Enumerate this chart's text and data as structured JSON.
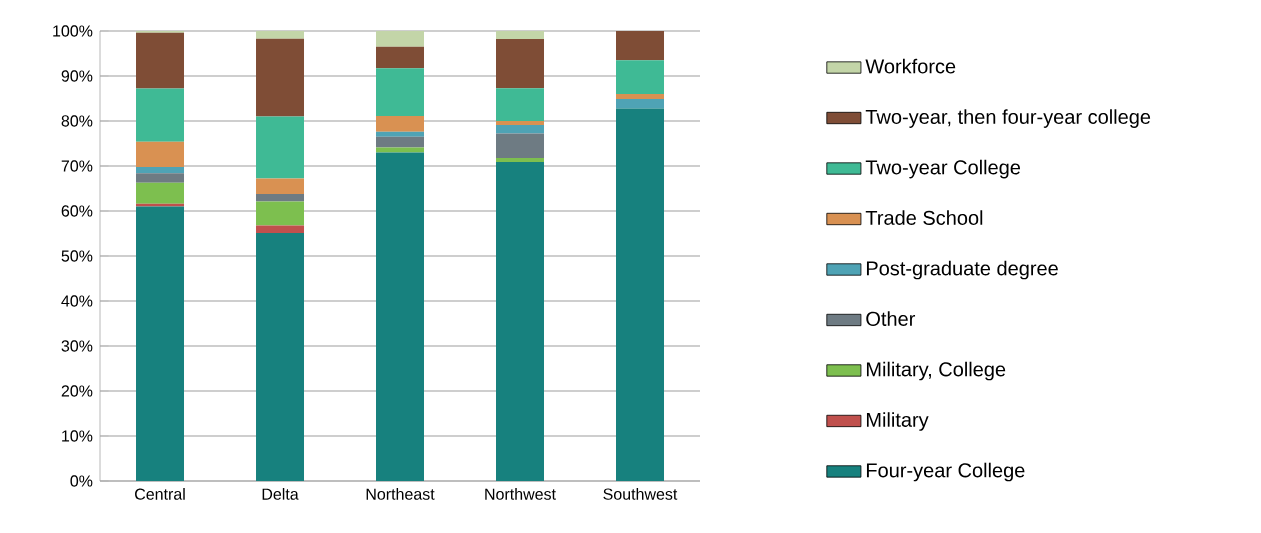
{
  "chart_data": {
    "type": "bar",
    "stacked": true,
    "categories": [
      "Central",
      "Delta",
      "Northeast",
      "Northwest",
      "Southwest"
    ],
    "series": [
      {
        "name": "Four-year College",
        "color": "#17817e",
        "values": [
          61,
          55.1,
          73.0,
          70.9,
          82.8
        ]
      },
      {
        "name": "Military",
        "color": "#c0504d",
        "values": [
          0.6,
          1.7,
          0,
          0,
          0
        ]
      },
      {
        "name": "Military, College",
        "color": "#7dbf4f",
        "values": [
          4.7,
          5.3,
          1.1,
          0.9,
          0
        ]
      },
      {
        "name": "Other",
        "color": "#6e7b83",
        "values": [
          2.1,
          1.7,
          2.4,
          5.4,
          0
        ]
      },
      {
        "name": "Post-graduate degree",
        "color": "#4fa3b5",
        "values": [
          1.4,
          0,
          1.1,
          1.9,
          2.1
        ]
      },
      {
        "name": "Trade School",
        "color": "#d99152",
        "values": [
          5.6,
          3.4,
          3.5,
          0.9,
          1.1
        ]
      },
      {
        "name": "Two-year College",
        "color": "#3fba95",
        "values": [
          11.8,
          13.8,
          10.6,
          7.3,
          7.5
        ]
      },
      {
        "name": "Two-year, then four-year college",
        "color": "#7f4d36",
        "values": [
          12.4,
          17.3,
          4.8,
          10.9,
          6.5
        ]
      },
      {
        "name": "Workforce",
        "color": "#c3d5a8",
        "values": [
          0.4,
          1.7,
          3.5,
          1.8,
          0
        ]
      }
    ],
    "ylim": [
      0,
      100
    ],
    "yticks": [
      {
        "value": 0,
        "label": "0%"
      },
      {
        "value": 10,
        "label": "10%"
      },
      {
        "value": 20,
        "label": "20%"
      },
      {
        "value": 30,
        "label": "30%"
      },
      {
        "value": 40,
        "label": "40%"
      },
      {
        "value": 50,
        "label": "50%"
      },
      {
        "value": 60,
        "label": "60%"
      },
      {
        "value": 70,
        "label": "70%"
      },
      {
        "value": 80,
        "label": "80%"
      },
      {
        "value": 90,
        "label": "90%"
      },
      {
        "value": 100,
        "label": "100%"
      }
    ],
    "grid": "y",
    "legend": "right"
  }
}
